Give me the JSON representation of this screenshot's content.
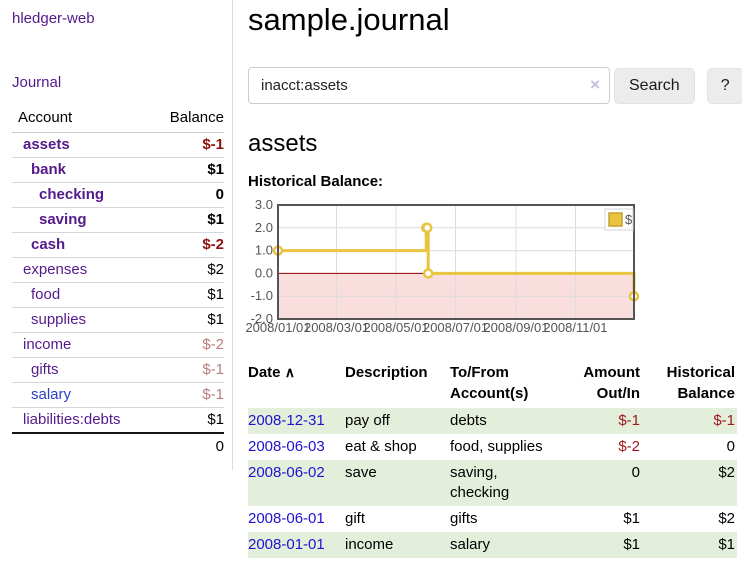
{
  "app": {
    "brand": "hledger-web",
    "nav_journal": "Journal"
  },
  "colors": {
    "link_purple": "#551a8b",
    "link_blue": "#2012cf",
    "salary_blue": "#2d41c6",
    "negative_strong": "#8f1010",
    "negative_muted": "#b97c7c",
    "register_negative": "#9e1919",
    "row_green": "#e3efdb",
    "chart_line": "#e9c440",
    "chart_pink_fill": "#fadddd",
    "chart_zero_line": "#9c0000"
  },
  "sidebar": {
    "headers": {
      "account": "Account",
      "balance": "Balance"
    },
    "rows": [
      {
        "account": "assets",
        "level": 1,
        "bold": true,
        "blue": false,
        "balance": "$-1",
        "balance_style": "neg-strong"
      },
      {
        "account": "bank",
        "level": 2,
        "bold": true,
        "blue": false,
        "balance": "$1",
        "balance_style": "pos"
      },
      {
        "account": "checking",
        "level": 3,
        "bold": true,
        "blue": false,
        "balance": "0",
        "balance_style": "pos"
      },
      {
        "account": "saving",
        "level": 3,
        "bold": true,
        "blue": false,
        "balance": "$1",
        "balance_style": "pos"
      },
      {
        "account": "cash",
        "level": 2,
        "bold": true,
        "blue": false,
        "balance": "$-2",
        "balance_style": "neg-strong"
      },
      {
        "account": "expenses",
        "level": 1,
        "bold": false,
        "blue": false,
        "balance": "$2",
        "balance_style": "pos"
      },
      {
        "account": "food",
        "level": 2,
        "bold": false,
        "blue": false,
        "balance": "$1",
        "balance_style": "pos"
      },
      {
        "account": "supplies",
        "level": 2,
        "bold": false,
        "blue": false,
        "balance": "$1",
        "balance_style": "pos"
      },
      {
        "account": "income",
        "level": 1,
        "bold": false,
        "blue": false,
        "balance": "$-2",
        "balance_style": "neg-muted"
      },
      {
        "account": "gifts",
        "level": 2,
        "bold": false,
        "blue": false,
        "balance": "$-1",
        "balance_style": "neg-muted"
      },
      {
        "account": "salary",
        "level": 2,
        "bold": false,
        "blue": true,
        "balance": "$-1",
        "balance_style": "neg-muted"
      },
      {
        "account": "liabilities:debts",
        "level": 1,
        "bold": false,
        "blue": false,
        "balance": "$1",
        "balance_style": "pos"
      }
    ],
    "total": "0"
  },
  "header": {
    "title": "sample.journal"
  },
  "search": {
    "value": "inacct:assets",
    "clear_icon": "×",
    "button_label": "Search",
    "help_label": "?"
  },
  "account_page": {
    "heading": "assets",
    "chart_label": "Historical Balance:"
  },
  "chart_data": {
    "type": "line",
    "title": "Historical Balance:",
    "step": true,
    "x_range_days": [
      0,
      365
    ],
    "ylim": [
      -2,
      3
    ],
    "grid": true,
    "legend": {
      "position": "top-right",
      "label": "$"
    },
    "series": [
      {
        "name": "$",
        "color": "#e9c440",
        "points": [
          {
            "date": "2008-01-01",
            "day": 0,
            "value": 1
          },
          {
            "date": "2008-06-01",
            "day": 152,
            "value": 2
          },
          {
            "date": "2008-06-02",
            "day": 153,
            "value": 2
          },
          {
            "date": "2008-06-03",
            "day": 154,
            "value": 0
          },
          {
            "date": "2008-12-31",
            "day": 365,
            "value": -1
          }
        ]
      }
    ],
    "x_ticks": [
      {
        "day": 0,
        "label": "2008/01/01"
      },
      {
        "day": 60,
        "label": "2008/03/01"
      },
      {
        "day": 121,
        "label": "2008/05/01"
      },
      {
        "day": 182,
        "label": "2008/07/01"
      },
      {
        "day": 244,
        "label": "2008/09/01"
      },
      {
        "day": 305,
        "label": "2008/11/01"
      }
    ],
    "y_ticks": [
      {
        "v": 3,
        "label": "3.0"
      },
      {
        "v": 2,
        "label": "2.0"
      },
      {
        "v": 1,
        "label": "1.0"
      },
      {
        "v": 0,
        "label": "0.0"
      },
      {
        "v": -1,
        "label": "-1.0"
      },
      {
        "v": -2,
        "label": "-2.0"
      }
    ],
    "below_zero_fill": "#fadddd",
    "zero_line_color": "#9c0000"
  },
  "register": {
    "columns": [
      "Date",
      "Description",
      "To/From Account(s)",
      "Amount Out/In",
      "Historical Balance"
    ],
    "sort_icon": "∧",
    "rows": [
      {
        "date": "2008-12-31",
        "description": "pay off",
        "accounts": "debts",
        "amount": "$-1",
        "amount_neg": true,
        "balance": "$-1",
        "balance_neg": true
      },
      {
        "date": "2008-06-03",
        "description": "eat & shop",
        "accounts": "food, supplies",
        "amount": "$-2",
        "amount_neg": true,
        "balance": "0",
        "balance_neg": false
      },
      {
        "date": "2008-06-02",
        "description": "save",
        "accounts": "saving, checking",
        "amount": "0",
        "amount_neg": false,
        "balance": "$2",
        "balance_neg": false
      },
      {
        "date": "2008-06-01",
        "description": "gift",
        "accounts": "gifts",
        "amount": "$1",
        "amount_neg": false,
        "balance": "$2",
        "balance_neg": false
      },
      {
        "date": "2008-01-01",
        "description": "income",
        "accounts": "salary",
        "amount": "$1",
        "amount_neg": false,
        "balance": "$1",
        "balance_neg": false
      }
    ]
  }
}
